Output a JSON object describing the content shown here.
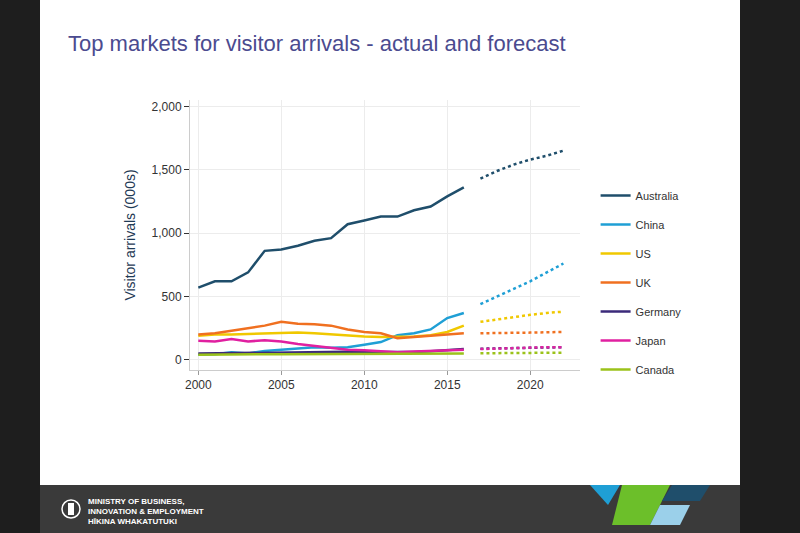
{
  "chart_data": {
    "type": "line",
    "title": "Top markets for visitor arrivals - actual and forecast",
    "y_label": "Visitor arrivals (000s)",
    "x": [
      2000,
      2001,
      2002,
      2003,
      2004,
      2005,
      2006,
      2007,
      2008,
      2009,
      2010,
      2011,
      2012,
      2013,
      2014,
      2015,
      2016,
      2017,
      2018,
      2019,
      2020,
      2021,
      2022
    ],
    "series": [
      {
        "name": "Australia",
        "color": "#1f4e6b",
        "values": [
          570,
          620,
          620,
          690,
          860,
          870,
          900,
          940,
          960,
          1070,
          1100,
          1130,
          1130,
          1180,
          1210,
          1290,
          1360,
          null,
          null,
          null,
          null,
          null,
          null
        ],
        "forecast": [
          null,
          null,
          null,
          null,
          null,
          null,
          null,
          null,
          null,
          null,
          null,
          null,
          null,
          null,
          null,
          null,
          null,
          1430,
          1490,
          1540,
          1580,
          1610,
          1650
        ]
      },
      {
        "name": "China",
        "color": "#1f9fd5",
        "values": [
          40,
          45,
          60,
          50,
          70,
          80,
          90,
          100,
          95,
          100,
          120,
          140,
          195,
          210,
          240,
          330,
          370,
          null,
          null,
          null,
          null,
          null,
          null
        ],
        "forecast": [
          null,
          null,
          null,
          null,
          null,
          null,
          null,
          null,
          null,
          null,
          null,
          null,
          null,
          null,
          null,
          null,
          null,
          440,
          500,
          560,
          620,
          690,
          760
        ]
      },
      {
        "name": "US",
        "color": "#f0c800",
        "values": [
          190,
          200,
          200,
          205,
          210,
          210,
          215,
          210,
          200,
          190,
          185,
          180,
          180,
          185,
          195,
          220,
          270,
          null,
          null,
          null,
          null,
          null,
          null
        ],
        "forecast": [
          null,
          null,
          null,
          null,
          null,
          null,
          null,
          null,
          null,
          null,
          null,
          null,
          null,
          null,
          null,
          null,
          null,
          300,
          320,
          340,
          355,
          370,
          380
        ]
      },
      {
        "name": "UK",
        "color": "#f07020",
        "values": [
          200,
          210,
          230,
          250,
          270,
          300,
          285,
          280,
          270,
          240,
          220,
          210,
          170,
          180,
          190,
          200,
          210,
          null,
          null,
          null,
          null,
          null,
          null
        ],
        "forecast": [
          null,
          null,
          null,
          null,
          null,
          null,
          null,
          null,
          null,
          null,
          null,
          null,
          null,
          null,
          null,
          null,
          null,
          210,
          210,
          212,
          215,
          218,
          220
        ]
      },
      {
        "name": "Germany",
        "color": "#3b2a7a",
        "values": [
          50,
          52,
          53,
          55,
          57,
          58,
          60,
          62,
          63,
          65,
          65,
          62,
          60,
          62,
          68,
          75,
          85,
          null,
          null,
          null,
          null,
          null,
          null
        ],
        "forecast": [
          null,
          null,
          null,
          null,
          null,
          null,
          null,
          null,
          null,
          null,
          null,
          null,
          null,
          null,
          null,
          null,
          null,
          88,
          90,
          92,
          95,
          97,
          100
        ]
      },
      {
        "name": "Japan",
        "color": "#e020a0",
        "values": [
          150,
          145,
          165,
          145,
          155,
          145,
          125,
          110,
          90,
          80,
          75,
          65,
          60,
          65,
          70,
          75,
          80,
          null,
          null,
          null,
          null,
          null,
          null
        ],
        "forecast": [
          null,
          null,
          null,
          null,
          null,
          null,
          null,
          null,
          null,
          null,
          null,
          null,
          null,
          null,
          null,
          null,
          null,
          85,
          90,
          95,
          98,
          100,
          100
        ]
      },
      {
        "name": "Canada",
        "color": "#9bc21a",
        "values": [
          40,
          42,
          45,
          45,
          45,
          45,
          45,
          45,
          45,
          45,
          45,
          45,
          45,
          45,
          45,
          50,
          50,
          null,
          null,
          null,
          null,
          null,
          null
        ],
        "forecast": [
          null,
          null,
          null,
          null,
          null,
          null,
          null,
          null,
          null,
          null,
          null,
          null,
          null,
          null,
          null,
          null,
          null,
          52,
          53,
          54,
          55,
          56,
          57
        ]
      }
    ],
    "xlim": [
      1999.5,
      2023
    ],
    "xticks": [
      2000,
      2005,
      2010,
      2015,
      2020
    ],
    "ylim": [
      -80,
      2050
    ],
    "yticks": [
      0,
      500,
      {
        "value": 1000,
        "label": "1,000"
      },
      {
        "value": 1500,
        "label": "1,500"
      },
      {
        "value": 2000,
        "label": "2,000"
      }
    ],
    "grid": true,
    "legend": "right"
  },
  "footer": [
    "MINISTRY OF BUSINESS,",
    "INNOVATION & EMPLOYMENT",
    "HĪKINA WHAKATUTUKI"
  ]
}
